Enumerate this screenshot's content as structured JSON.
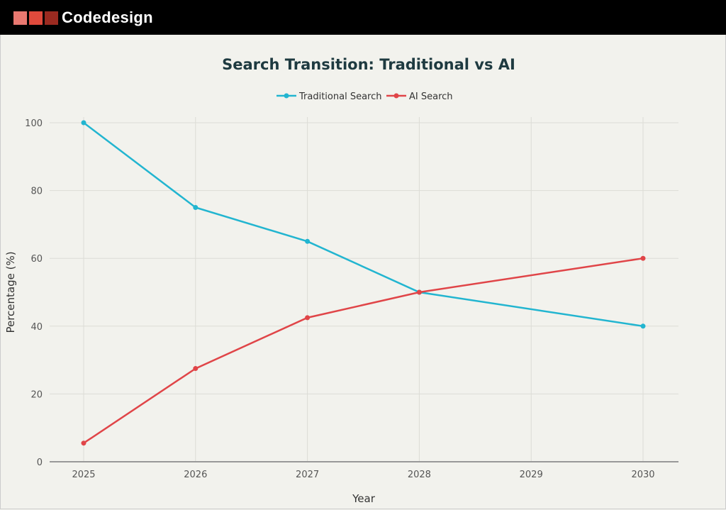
{
  "brand": {
    "name": "Codedesign",
    "colors": [
      "#e87870",
      "#e04a3c",
      "#9b2a20"
    ]
  },
  "chart_data": {
    "type": "line",
    "title": "Search Transition: Traditional vs AI",
    "xlabel": "Year",
    "ylabel": "Percentage (%)",
    "x_ticks": [
      "2025",
      "2026",
      "2027",
      "2028",
      "2029",
      "2030"
    ],
    "y_ticks": [
      "0",
      "20",
      "40",
      "60",
      "80",
      "100"
    ],
    "xlim": [
      2025,
      2030
    ],
    "ylim": [
      0,
      100
    ],
    "grid": true,
    "legend_position": "top-center",
    "series": [
      {
        "name": "Traditional Search",
        "color": "#22b5d0",
        "x": [
          2025,
          2026,
          2027,
          2028,
          2030
        ],
        "y": [
          100,
          75,
          65,
          50,
          40
        ]
      },
      {
        "name": "AI Search",
        "color": "#e04548",
        "x": [
          2025,
          2026,
          2027,
          2028,
          2030
        ],
        "y": [
          5.5,
          27.5,
          42.5,
          50,
          60
        ]
      }
    ]
  }
}
